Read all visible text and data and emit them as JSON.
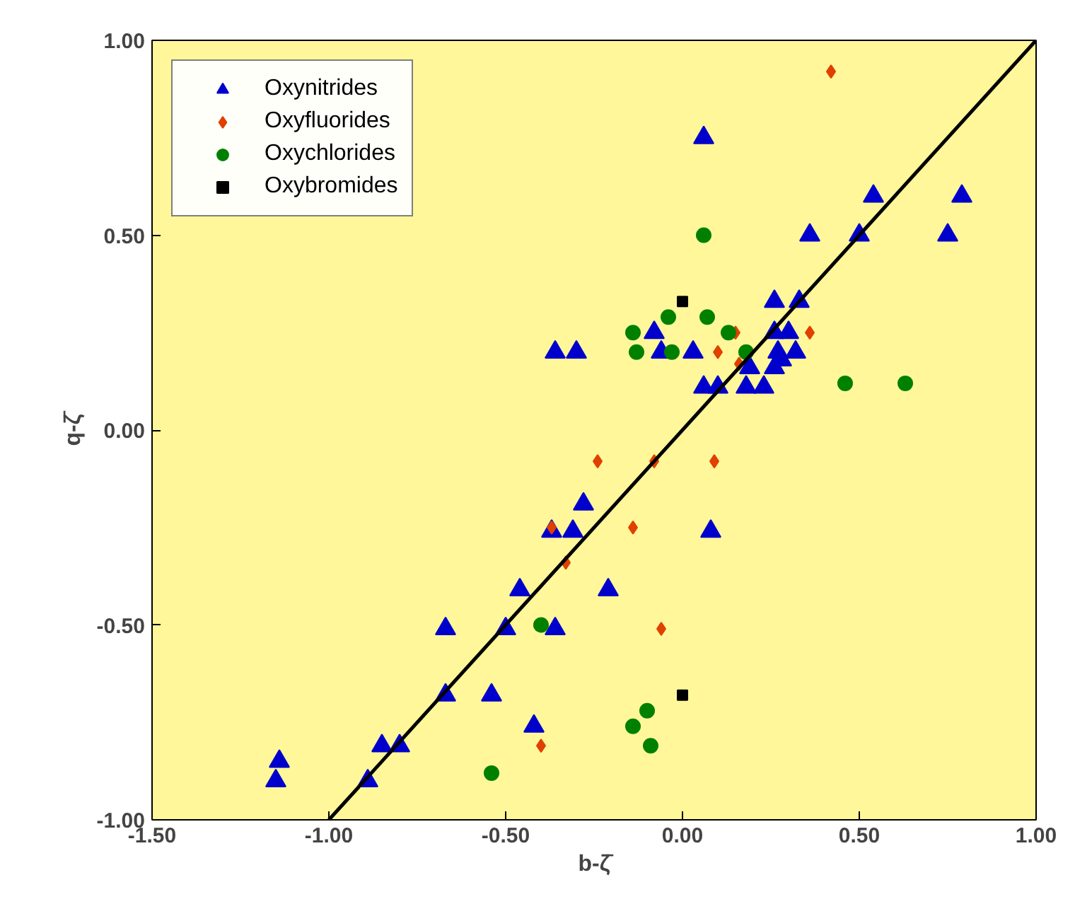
{
  "chart_data": {
    "type": "scatter",
    "xlabel": "b-ζ̄",
    "ylabel": "q-ζ̄",
    "xlim": [
      -1.5,
      1.0
    ],
    "ylim": [
      -1.0,
      1.0
    ],
    "xticks": [
      {
        "value": -1.5,
        "label": "-1.50"
      },
      {
        "value": -1.0,
        "label": "-1.00"
      },
      {
        "value": -0.5,
        "label": "-0.50"
      },
      {
        "value": 0.0,
        "label": "0.00"
      },
      {
        "value": 0.5,
        "label": "0.50"
      },
      {
        "value": 1.0,
        "label": "1.00"
      }
    ],
    "yticks": [
      {
        "value": -1.0,
        "label": "-1.00"
      },
      {
        "value": -0.5,
        "label": "-0.50"
      },
      {
        "value": 0.0,
        "label": "0.00"
      },
      {
        "value": 0.5,
        "label": "0.50"
      },
      {
        "value": 1.0,
        "label": "1.00"
      }
    ],
    "grid": false,
    "legend": "top left",
    "series": [
      {
        "name": "Oxynitrides",
        "color": "#0000cc",
        "marker": "triangle",
        "x": [
          0.06,
          0.54,
          0.79,
          0.36,
          0.5,
          0.75,
          0.26,
          0.33,
          -0.36,
          -0.3,
          -0.08,
          0.26,
          0.3,
          -0.06,
          0.03,
          0.27,
          0.32,
          0.28,
          0.19,
          0.26,
          0.06,
          0.1,
          0.18,
          0.23,
          0.08,
          -0.21,
          -0.28,
          -0.37,
          -0.31,
          -0.46,
          -0.67,
          -0.5,
          -0.36,
          -0.67,
          -0.54,
          -0.42,
          -0.85,
          -0.8,
          -1.14,
          -1.15,
          -0.89
        ],
        "values": [
          0.75,
          0.6,
          0.6,
          0.5,
          0.5,
          0.5,
          0.33,
          0.33,
          0.2,
          0.2,
          0.25,
          0.25,
          0.25,
          0.2,
          0.2,
          0.2,
          0.2,
          0.18,
          0.16,
          0.16,
          0.11,
          0.11,
          0.11,
          0.11,
          -0.26,
          -0.41,
          -0.19,
          -0.26,
          -0.26,
          -0.41,
          -0.51,
          -0.51,
          -0.51,
          -0.68,
          -0.68,
          -0.76,
          -0.81,
          -0.81,
          -0.85,
          -0.9,
          -0.9
        ]
      },
      {
        "name": "Oxyfluorides",
        "color": "#e04000",
        "marker": "diamond",
        "x": [
          0.42,
          0.15,
          0.36,
          0.1,
          0.16,
          -0.24,
          -0.08,
          0.09,
          -0.14,
          -0.06,
          -0.37,
          -0.33,
          -0.4
        ],
        "values": [
          0.92,
          0.25,
          0.25,
          0.2,
          0.17,
          -0.08,
          -0.08,
          -0.08,
          -0.25,
          -0.51,
          -0.25,
          -0.34,
          -0.81
        ]
      },
      {
        "name": "Oxychlorides",
        "color": "#008000",
        "marker": "circle",
        "x": [
          0.06,
          -0.04,
          0.07,
          -0.14,
          0.13,
          -0.13,
          -0.03,
          0.18,
          0.46,
          0.63,
          -0.1,
          -0.14,
          -0.09,
          -0.4,
          -0.54
        ],
        "values": [
          0.5,
          0.29,
          0.29,
          0.25,
          0.25,
          0.2,
          0.2,
          0.2,
          0.12,
          0.12,
          -0.72,
          -0.76,
          -0.81,
          -0.5,
          -0.88
        ]
      },
      {
        "name": "Oxybromides",
        "color": "#000000",
        "marker": "square",
        "x": [
          0.0,
          0.0
        ],
        "values": [
          0.33,
          -0.68
        ]
      },
      {
        "type": "line",
        "color": "#000000",
        "line_style": "solid",
        "x": [
          -1.0,
          1.0
        ],
        "values": [
          -1.0,
          1.0
        ]
      }
    ]
  }
}
